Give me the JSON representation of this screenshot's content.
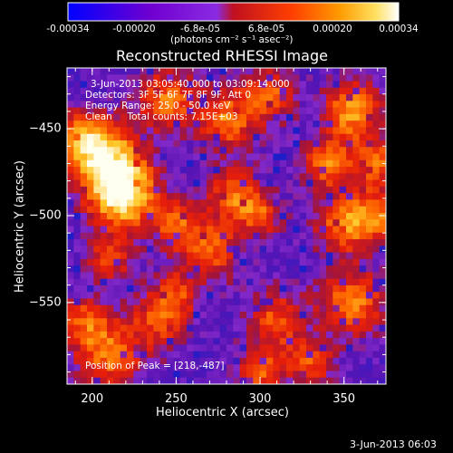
{
  "chart_data": {
    "type": "heatmap",
    "title": "Reconstructed RHESSI Image",
    "xlabel": "Heliocentric X (arcsec)",
    "ylabel": "Heliocentric Y (arcsec)",
    "xlim": [
      185,
      375
    ],
    "ylim": [
      -597,
      -415
    ],
    "xticks": [
      200,
      250,
      300,
      350
    ],
    "yticks": [
      -450,
      -500,
      -550
    ],
    "colorbar": {
      "label": "(photons cm⁻² s⁻¹ asec⁻²)",
      "range": [
        -0.00034,
        0.00034
      ],
      "ticks": [
        "-0.00034",
        "-0.00020",
        "-6.8e-05",
        "6.8e-05",
        "0.00020",
        "0.00034"
      ],
      "colormap": [
        "#0000ff",
        "#6a00cc",
        "#8a2be2",
        "#c01020",
        "#ff4000",
        "#ff9a00",
        "#ffe060",
        "#ffffff"
      ]
    },
    "annotations": {
      "time_range": "3-Jun-2013 03:05:40.000 to 03:09:14.000",
      "detectors": "Detectors: 3F 5F 6F 7F 8F 9F, Att 0",
      "energy": "Energy Range: 25.0 - 50.0 keV",
      "clean": "Clean     Total counts: 7.15E+03",
      "peak": "Position of Peak = [218,-487]"
    },
    "footer_date": "3-Jun-2013 06:03"
  }
}
